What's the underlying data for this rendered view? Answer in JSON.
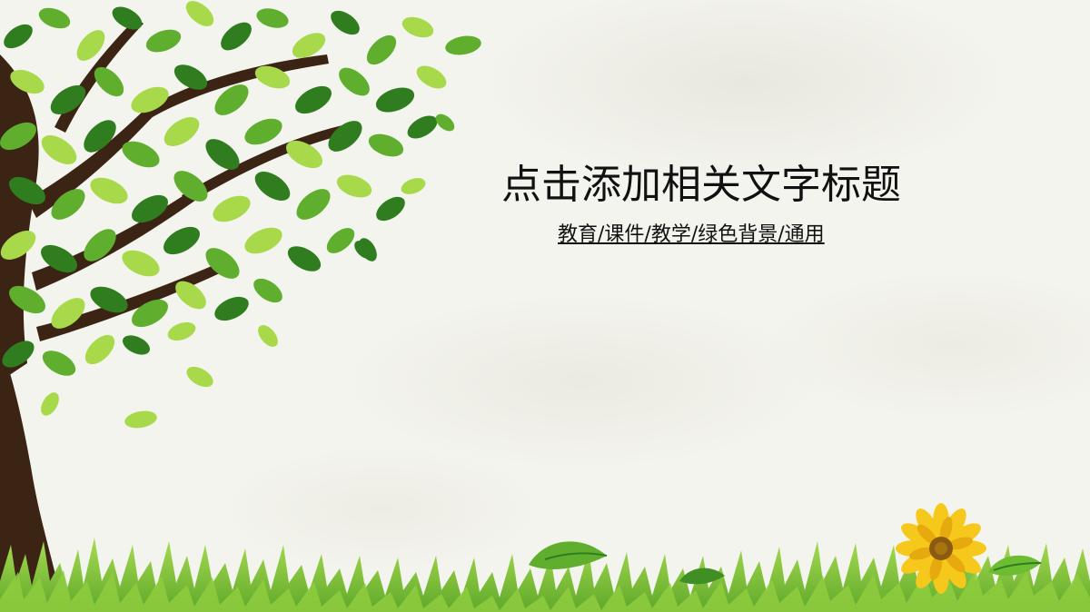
{
  "slide": {
    "title": "点击添加相关文字标题",
    "subtitle": "教育/课件/教学/绿色背景/通用"
  },
  "colors": {
    "background": "#f4f4ee",
    "trunk": "#3b2414",
    "leaf_dark": "#2f7d1f",
    "leaf_mid": "#5fae2e",
    "leaf_light": "#a8d94a",
    "grass": "#7cc23a",
    "flower_petal": "#f7c81c",
    "flower_center": "#8a5a12",
    "text": "#111111"
  },
  "decorations": {
    "tree": "tree-illustration",
    "grass": "grass-strip",
    "flower": "sunflower-icon",
    "leaves": "fallen-leaf-icon"
  }
}
